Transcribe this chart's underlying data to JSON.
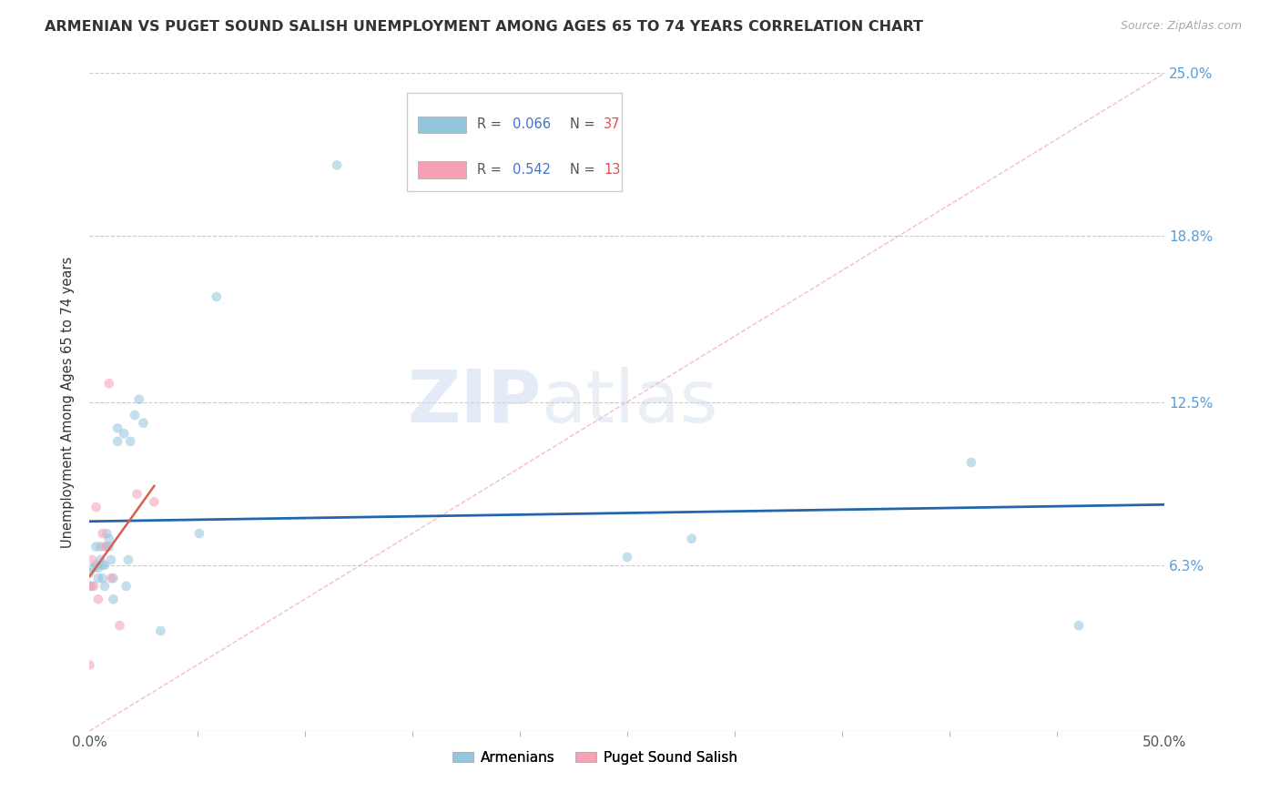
{
  "title": "ARMENIAN VS PUGET SOUND SALISH UNEMPLOYMENT AMONG AGES 65 TO 74 YEARS CORRELATION CHART",
  "source": "Source: ZipAtlas.com",
  "ylabel": "Unemployment Among Ages 65 to 74 years",
  "xlim": [
    0.0,
    0.5
  ],
  "ylim": [
    0.0,
    0.25
  ],
  "xtick_positions": [
    0.0,
    0.5
  ],
  "xtick_labels": [
    "0.0%",
    "50.0%"
  ],
  "yticks": [
    0.0,
    0.063,
    0.125,
    0.188,
    0.25
  ],
  "ytick_labels": [
    "",
    "6.3%",
    "12.5%",
    "18.8%",
    "25.0%"
  ],
  "watermark_zip": "ZIP",
  "watermark_atlas": "atlas",
  "legend_armenians_R": "0.066",
  "legend_armenians_N": "37",
  "legend_salish_R": "0.542",
  "legend_salish_N": "13",
  "armenians_color": "#92c5de",
  "salish_color": "#f4a0b5",
  "armenians_line_color": "#2166ac",
  "salish_line_color": "#d6604d",
  "diagonal_color": "#f4a0b5",
  "background_color": "#ffffff",
  "grid_color": "#cccccc",
  "marker_size": 60,
  "marker_alpha": 0.55,
  "armenians_x": [
    0.0,
    0.001,
    0.002,
    0.003,
    0.003,
    0.004,
    0.004,
    0.005,
    0.005,
    0.006,
    0.006,
    0.007,
    0.007,
    0.008,
    0.008,
    0.009,
    0.009,
    0.01,
    0.011,
    0.011,
    0.013,
    0.013,
    0.016,
    0.017,
    0.018,
    0.019,
    0.021,
    0.023,
    0.025,
    0.033,
    0.051,
    0.059,
    0.115,
    0.25,
    0.28,
    0.41,
    0.46
  ],
  "armenians_y": [
    0.06,
    0.055,
    0.062,
    0.063,
    0.07,
    0.062,
    0.058,
    0.065,
    0.07,
    0.063,
    0.058,
    0.063,
    0.055,
    0.07,
    0.075,
    0.07,
    0.073,
    0.065,
    0.058,
    0.05,
    0.11,
    0.115,
    0.113,
    0.055,
    0.065,
    0.11,
    0.12,
    0.126,
    0.117,
    0.038,
    0.075,
    0.165,
    0.215,
    0.066,
    0.073,
    0.102,
    0.04
  ],
  "salish_x": [
    0.0,
    0.0,
    0.001,
    0.002,
    0.003,
    0.004,
    0.006,
    0.007,
    0.009,
    0.01,
    0.014,
    0.022,
    0.03
  ],
  "salish_y": [
    0.025,
    0.055,
    0.065,
    0.055,
    0.085,
    0.05,
    0.075,
    0.07,
    0.132,
    0.058,
    0.04,
    0.09,
    0.087
  ],
  "title_fontsize": 11.5,
  "axis_label_fontsize": 10.5,
  "tick_fontsize": 11
}
